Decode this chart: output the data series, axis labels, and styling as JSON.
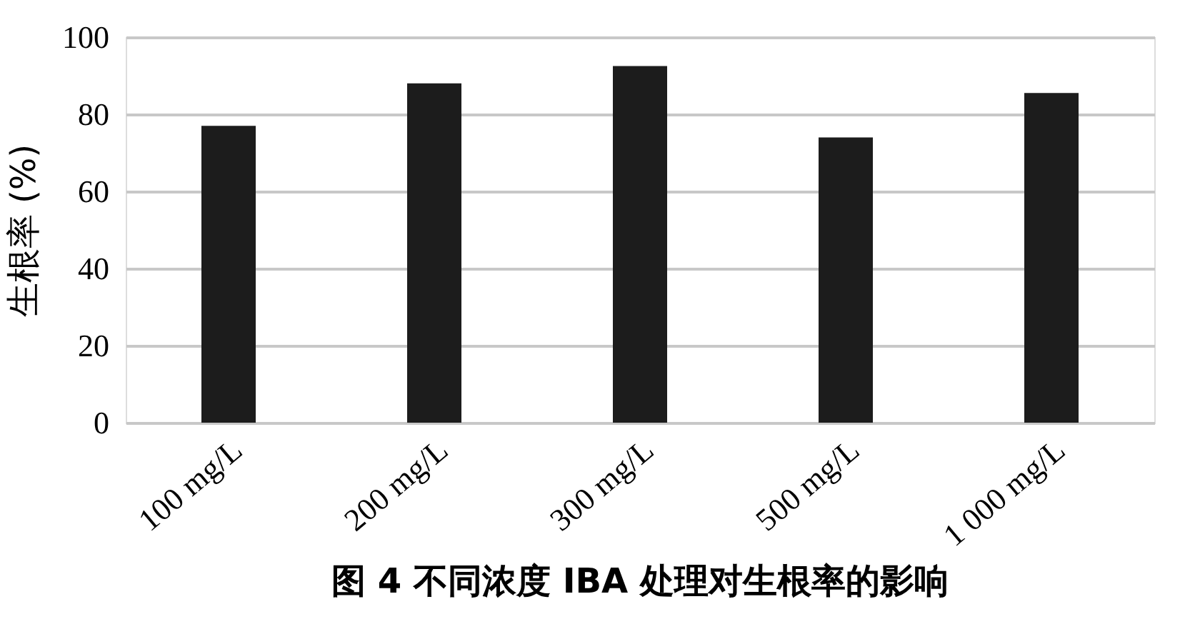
{
  "chart_data": {
    "type": "bar",
    "title": "图 4  不同浓度 IBA 处理对生根率的影响",
    "ylabel": "生根率 (%)",
    "categories": [
      "100 mg/L",
      "200 mg/L",
      "300 mg/L",
      "500 mg/L",
      "1 000 mg/L"
    ],
    "values": [
      77,
      88,
      92.5,
      74,
      85.5
    ],
    "color": "#1c1c1c",
    "ylim": [
      0,
      100
    ],
    "yticks": [
      0,
      20,
      40,
      60,
      80,
      100
    ],
    "grid": "y"
  }
}
